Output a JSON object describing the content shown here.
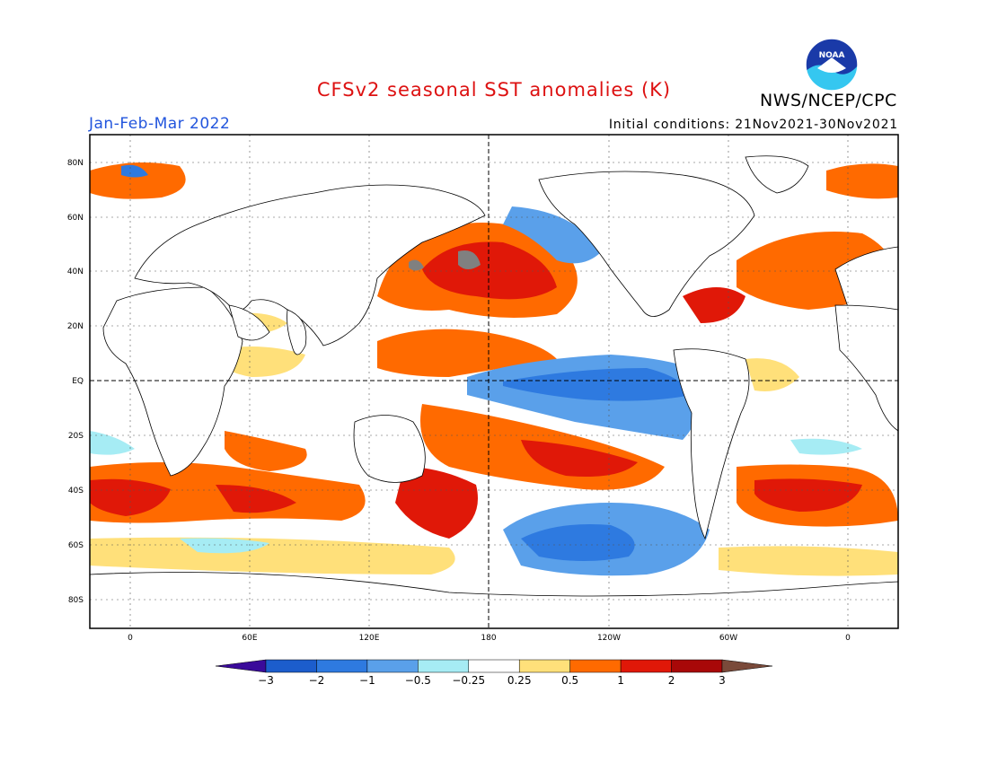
{
  "header": {
    "title": "CFSv2 seasonal SST anomalies (K)",
    "agency": "NWS/NCEP/CPC",
    "period": "Jan-Feb-Mar 2022",
    "initial_conditions": "Initial conditions: 21Nov2021-30Nov2021"
  },
  "logo": {
    "text": "NOAA"
  },
  "colors": {
    "title": "#dd1111",
    "period": "#2255dd",
    "bins": [
      "#3a0a9a",
      "#1c5dcc",
      "#2e7ae0",
      "#5aa0ea",
      "#a6ecf4",
      "#ffffff",
      "#ffe07a",
      "#ff6a00",
      "#e01808",
      "#a80808",
      "#7a4a3a"
    ]
  },
  "map": {
    "lat_labels": [
      "80N",
      "60N",
      "40N",
      "20N",
      "EQ",
      "20S",
      "40S",
      "60S",
      "80S"
    ],
    "lon_labels": [
      "0",
      "60E",
      "120E",
      "180",
      "120W",
      "60W",
      "0"
    ]
  },
  "colorbar": {
    "labels": [
      "-3",
      "-2",
      "-1",
      "-0.5",
      "-0.25",
      "0.25",
      "0.5",
      "1",
      "2",
      "3"
    ]
  }
}
